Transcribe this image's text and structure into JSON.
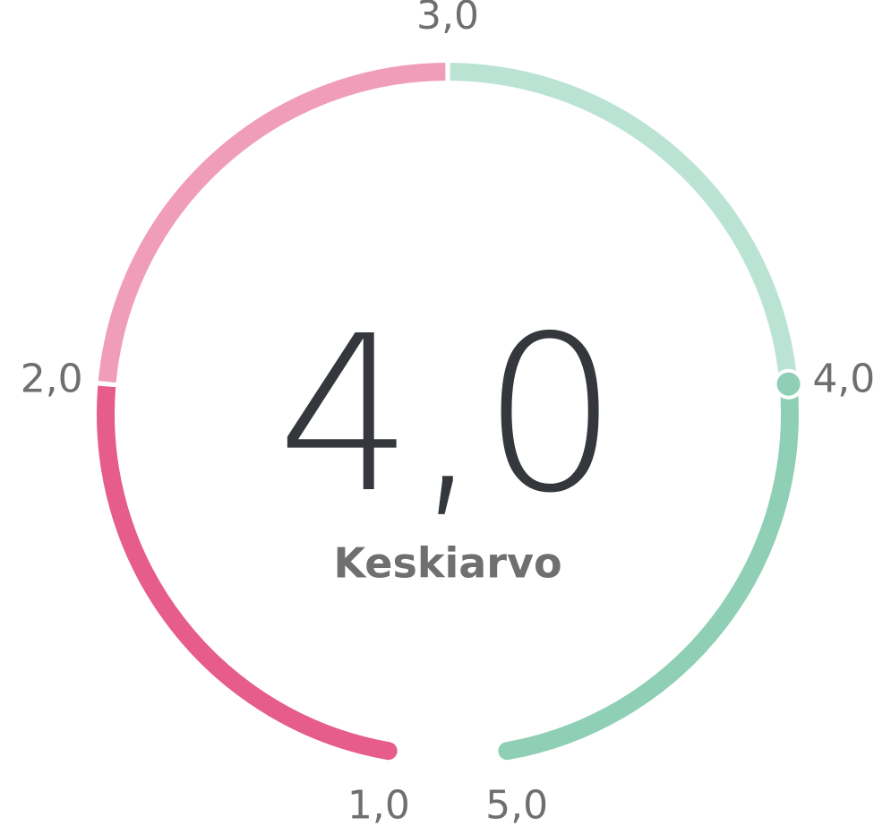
{
  "chart_data": {
    "type": "gauge",
    "label": "Keskiarvo",
    "values": [
      4
    ],
    "value_labels": [
      "4,0"
    ],
    "ylim": [
      1,
      5
    ],
    "yticks": [
      {
        "value": 1,
        "label": "1,0"
      },
      {
        "value": 2,
        "label": "2,0"
      },
      {
        "value": 3,
        "label": "3,0"
      },
      {
        "value": 4,
        "label": "4,0"
      },
      {
        "value": 5,
        "label": "5,0"
      }
    ],
    "segment_colors": [
      "#e65c8b",
      "#f09dba",
      "#bae3d4",
      "#8fcfb6"
    ],
    "marker_color": "#8fcfb6"
  }
}
